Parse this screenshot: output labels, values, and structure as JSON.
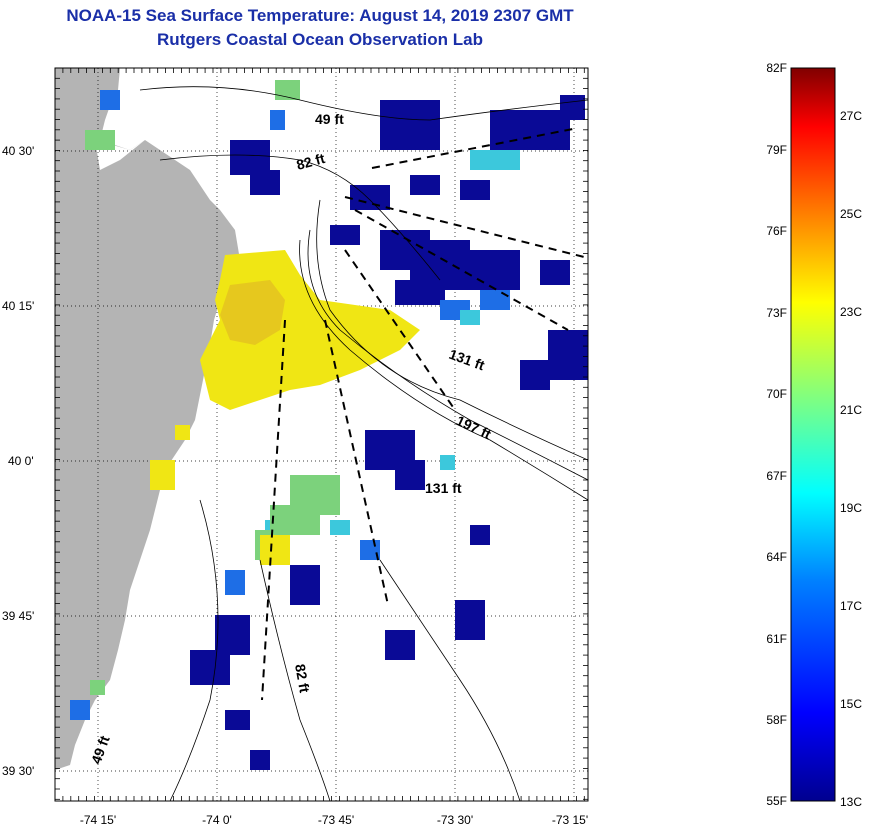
{
  "title": {
    "line1": "NOAA-15 Sea Surface Temperature:  August 14, 2019 2307 GMT",
    "line2": "Rutgers Coastal Ocean Observation Lab"
  },
  "map": {
    "lat_labels": [
      "40 30'",
      "40 15'",
      "40 0'",
      "39 45'",
      "39 30'"
    ],
    "lon_labels": [
      "-74 15'",
      "-74 0'",
      "-73 45'",
      "-73 30'",
      "-73 15'"
    ],
    "contour_labels": [
      "49 ft",
      "82 ft",
      "131 ft",
      "197 ft",
      "131 ft",
      "82 ft",
      "49 ft"
    ],
    "colors": {
      "land": "#b4b4b4",
      "cold": "#0a0a96",
      "cool": "#1e6ee6",
      "mid": "#3cc8dc",
      "green": "#7cd27c",
      "warm": "#f0e614",
      "warmer": "#e6c81e"
    }
  },
  "colorbar": {
    "fahrenheit_labels": [
      "82F",
      "79F",
      "76F",
      "73F",
      "70F",
      "67F",
      "64F",
      "61F",
      "58F",
      "55F"
    ],
    "celsius_labels": [
      "27C",
      "25C",
      "23C",
      "21C",
      "19C",
      "17C",
      "15C",
      "13C"
    ],
    "range_f": [
      55,
      82
    ],
    "range_c": [
      13,
      28
    ]
  }
}
